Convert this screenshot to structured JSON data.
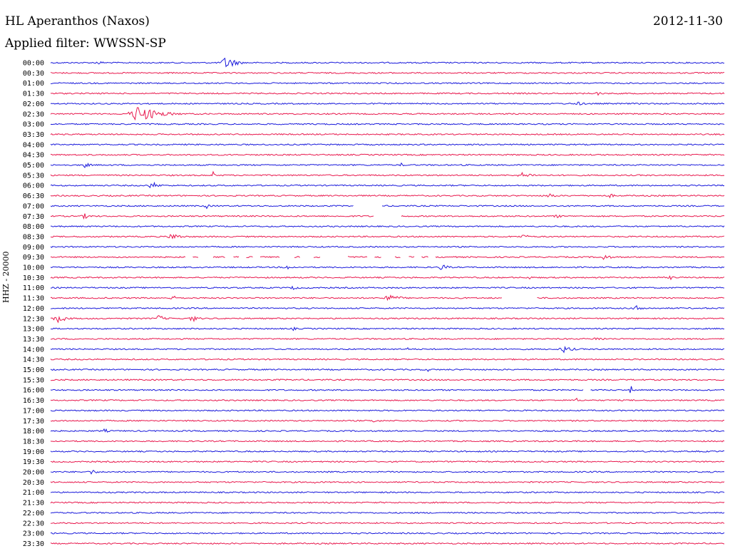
{
  "header": {
    "station": "HL Aperanthos (Naxos)",
    "date": "2012-11-30",
    "filter": "Applied filter: WWSSN-SP"
  },
  "chart_data": {
    "type": "line",
    "title": "HL Aperanthos (Naxos)",
    "ylabel": "HHZ - 20000",
    "colors": {
      "even_row": "#1a1adb",
      "odd_row": "#e8194e"
    },
    "traces": [
      {
        "time": "00:00",
        "events": [
          {
            "x": 0.26,
            "amp": 10,
            "w": 0.03
          },
          {
            "x": 0.07,
            "amp": 3,
            "w": 0.02
          }
        ]
      },
      {
        "time": "00:30",
        "events": []
      },
      {
        "time": "01:00",
        "events": []
      },
      {
        "time": "01:30",
        "events": [
          {
            "x": 0.81,
            "amp": 3,
            "w": 0.02
          }
        ]
      },
      {
        "time": "02:00",
        "events": [
          {
            "x": 0.78,
            "amp": 3,
            "w": 0.03
          }
        ]
      },
      {
        "time": "02:30",
        "events": [
          {
            "x": 0.13,
            "amp": 12,
            "w": 0.06
          }
        ]
      },
      {
        "time": "03:00",
        "events": []
      },
      {
        "time": "03:30",
        "events": []
      },
      {
        "time": "04:00",
        "events": [
          {
            "x": 0.98,
            "amp": 2,
            "w": 0.01
          }
        ]
      },
      {
        "time": "04:30",
        "events": []
      },
      {
        "time": "05:00",
        "events": [
          {
            "x": 0.05,
            "amp": 4,
            "w": 0.02
          },
          {
            "x": 0.52,
            "amp": 3,
            "w": 0.01
          }
        ]
      },
      {
        "time": "05:30",
        "events": [
          {
            "x": 0.24,
            "amp": 8,
            "w": 0.005
          },
          {
            "x": 0.7,
            "amp": 4,
            "w": 0.04
          }
        ]
      },
      {
        "time": "06:00",
        "events": [
          {
            "x": 0.15,
            "amp": 6,
            "w": 0.02
          }
        ]
      },
      {
        "time": "06:30",
        "events": [
          {
            "x": 0.74,
            "amp": 4,
            "w": 0.02
          },
          {
            "x": 0.83,
            "amp": 4,
            "w": 0.01
          }
        ]
      },
      {
        "time": "07:00",
        "events": [
          {
            "x": 0.23,
            "amp": 5,
            "w": 0.01
          }
        ],
        "gaps": [
          [
            0.45,
            0.49
          ]
        ]
      },
      {
        "time": "07:30",
        "events": [
          {
            "x": 0.05,
            "amp": 4,
            "w": 0.02
          },
          {
            "x": 0.75,
            "amp": 3,
            "w": 0.02
          }
        ],
        "gaps": [
          [
            0.48,
            0.52
          ]
        ]
      },
      {
        "time": "08:00",
        "events": []
      },
      {
        "time": "08:30",
        "events": [
          {
            "x": 0.18,
            "amp": 5,
            "w": 0.03
          },
          {
            "x": 0.7,
            "amp": 3,
            "w": 0.03
          }
        ]
      },
      {
        "time": "09:00",
        "events": []
      },
      {
        "time": "09:30",
        "events": [
          {
            "x": 0.82,
            "amp": 5,
            "w": 0.02
          }
        ],
        "gaps": [
          [
            0.2,
            0.21
          ],
          [
            0.22,
            0.24
          ],
          [
            0.26,
            0.27
          ],
          [
            0.28,
            0.29
          ],
          [
            0.3,
            0.31
          ],
          [
            0.34,
            0.36
          ],
          [
            0.37,
            0.39
          ],
          [
            0.4,
            0.44
          ],
          [
            0.47,
            0.48
          ],
          [
            0.49,
            0.51
          ],
          [
            0.52,
            0.53
          ],
          [
            0.54,
            0.55
          ],
          [
            0.56,
            0.57
          ]
        ]
      },
      {
        "time": "10:00",
        "events": [
          {
            "x": 0.35,
            "amp": 4,
            "w": 0.02
          },
          {
            "x": 0.58,
            "amp": 5,
            "w": 0.02
          }
        ]
      },
      {
        "time": "10:30",
        "events": [
          {
            "x": 0.92,
            "amp": 3,
            "w": 0.02
          },
          {
            "x": 0.71,
            "amp": 3,
            "w": 0.01
          }
        ]
      },
      {
        "time": "11:00",
        "events": [
          {
            "x": 0.36,
            "amp": 3,
            "w": 0.02
          }
        ]
      },
      {
        "time": "11:30",
        "events": [
          {
            "x": 0.18,
            "amp": 4,
            "w": 0.02
          },
          {
            "x": 0.5,
            "amp": 5,
            "w": 0.04
          }
        ],
        "gaps": [
          [
            0.67,
            0.72
          ]
        ]
      },
      {
        "time": "12:00",
        "events": [
          {
            "x": 0.87,
            "amp": 4,
            "w": 0.03
          }
        ]
      },
      {
        "time": "12:30",
        "events": [
          {
            "x": 0.01,
            "amp": 6,
            "w": 0.03
          },
          {
            "x": 0.16,
            "amp": 5,
            "w": 0.02
          },
          {
            "x": 0.21,
            "amp": 5,
            "w": 0.02
          }
        ]
      },
      {
        "time": "13:00",
        "events": [
          {
            "x": 0.36,
            "amp": 3,
            "w": 0.01
          }
        ]
      },
      {
        "time": "13:30",
        "events": [
          {
            "x": 0.81,
            "amp": 3,
            "w": 0.03
          }
        ]
      },
      {
        "time": "14:00",
        "events": [
          {
            "x": 0.76,
            "amp": 5,
            "w": 0.03
          },
          {
            "x": 0.53,
            "amp": 3,
            "w": 0.01
          }
        ]
      },
      {
        "time": "14:30",
        "events": []
      },
      {
        "time": "15:00",
        "events": [
          {
            "x": 0.56,
            "amp": 3,
            "w": 0.01
          }
        ]
      },
      {
        "time": "15:30",
        "events": []
      },
      {
        "time": "16:00",
        "events": [
          {
            "x": 0.86,
            "amp": 9,
            "w": 0.005
          }
        ],
        "gaps": [
          [
            0.79,
            0.8
          ]
        ]
      },
      {
        "time": "16:30",
        "events": [
          {
            "x": 0.78,
            "amp": 3,
            "w": 0.01
          }
        ]
      },
      {
        "time": "17:00",
        "events": []
      },
      {
        "time": "17:30",
        "events": [
          {
            "x": 0.48,
            "amp": 3,
            "w": 0.02
          }
        ]
      },
      {
        "time": "18:00",
        "events": [
          {
            "x": 0.08,
            "amp": 4,
            "w": 0.01
          }
        ]
      },
      {
        "time": "18:30",
        "events": []
      },
      {
        "time": "19:00",
        "events": []
      },
      {
        "time": "19:30",
        "events": []
      },
      {
        "time": "20:00",
        "events": [
          {
            "x": 0.06,
            "amp": 4,
            "w": 0.02
          }
        ]
      },
      {
        "time": "20:30",
        "events": [
          {
            "x": 0.39,
            "amp": 3,
            "w": 0.01
          }
        ]
      },
      {
        "time": "21:00",
        "events": []
      },
      {
        "time": "21:30",
        "events": []
      },
      {
        "time": "22:00",
        "events": []
      },
      {
        "time": "22:30",
        "events": []
      },
      {
        "time": "23:00",
        "events": []
      },
      {
        "time": "23:30",
        "events": []
      }
    ]
  }
}
